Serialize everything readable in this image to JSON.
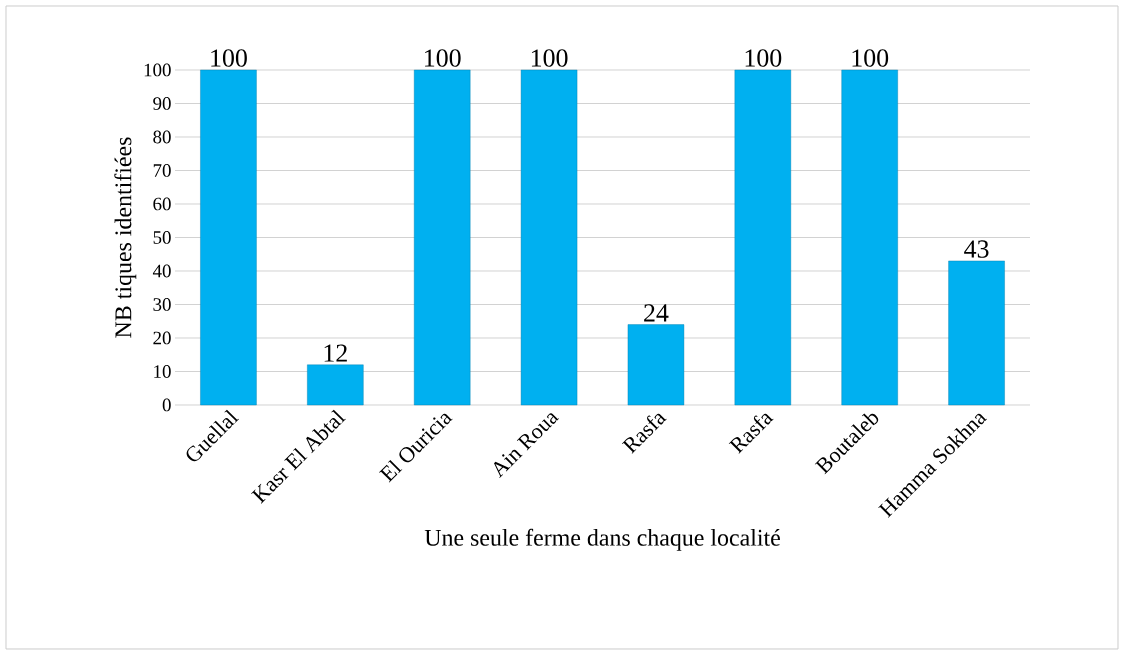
{
  "chart_data": {
    "type": "bar",
    "xlabel": "Une seule ferme dans chaque localité",
    "ylabel": "NB tiques identifiées",
    "categories": [
      "Guellal",
      "Kasr El Abtal",
      "El Ouricia",
      "Ain Roua",
      "Rasfa",
      "Rasfa",
      "Boutaleb",
      "Hamma Sokhna"
    ],
    "values": [
      100,
      12,
      100,
      100,
      24,
      100,
      100,
      43
    ],
    "color": "#00b0f0",
    "ylim": [
      0,
      100
    ],
    "yticks": [
      0,
      10,
      20,
      30,
      40,
      50,
      60,
      70,
      80,
      90,
      100
    ],
    "grid": "y",
    "data_labels": true
  }
}
